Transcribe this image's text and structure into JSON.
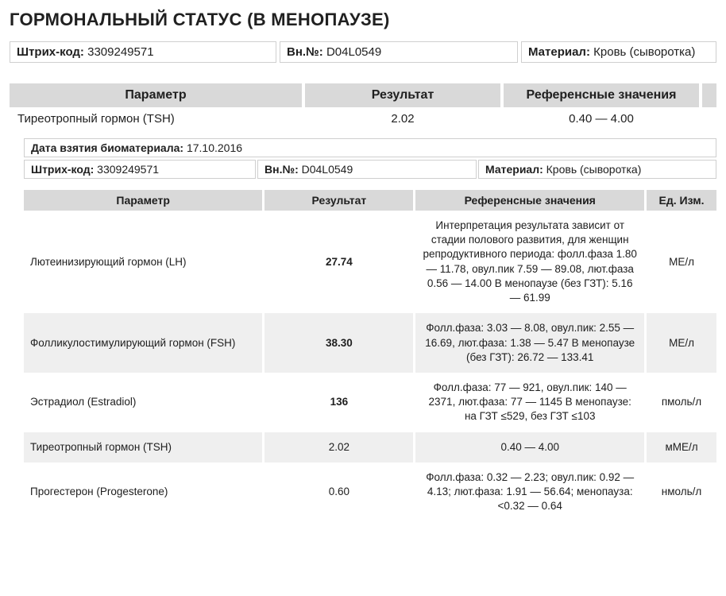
{
  "title": "ГОРМОНАЛЬНЫЙ СТАТУС (В МЕНОПАУЗЕ)",
  "info": {
    "barcode_label": "Штрих-код:",
    "barcode_value": "3309249571",
    "vn_label": "Вн.№:",
    "vn_value": "D04L0549",
    "material_label": "Материал:",
    "material_value": "Кровь (сыворотка)"
  },
  "top_table": {
    "headers": {
      "param": "Параметр",
      "result": "Результат",
      "ref": "Референсные значения"
    },
    "row": {
      "param": "Тиреотропный гормон (TSH)",
      "result": "2.02",
      "ref": "0.40 — 4.00"
    }
  },
  "sub_info": {
    "date_label": "Дата взятия биоматериала:",
    "date_value": "17.10.2016",
    "barcode_label": "Штрих-код:",
    "barcode_value": "3309249571",
    "vn_label": "Вн.№:",
    "vn_value": "D04L0549",
    "material_label": "Материал:",
    "material_value": "Кровь (сыворотка)"
  },
  "det_table": {
    "headers": {
      "param": "Параметр",
      "result": "Результат",
      "ref": "Референсные значения",
      "unit": "Ед. Изм."
    },
    "rows": [
      {
        "param": "Лютеинизирующий гормон (LH)",
        "result": "27.74",
        "bold": true,
        "ref": "Интерпретация результата зависит от стадии полового развития, для женщин репродуктивного периода: фолл.фаза 1.80 — 11.78, овул.пик 7.59 — 89.08, лют.фаза 0.56 — 14.00 В менопаузе (без ГЗТ): 5.16 — 61.99",
        "unit": "МЕ/л",
        "alt": false
      },
      {
        "param": "Фолликулостимулирующий гормон (FSH)",
        "result": "38.30",
        "bold": true,
        "ref": "Фолл.фаза: 3.03 — 8.08, овул.пик: 2.55 — 16.69, лют.фаза: 1.38 — 5.47 В менопаузе (без ГЗТ): 26.72 — 133.41",
        "unit": "МЕ/л",
        "alt": true
      },
      {
        "param": "Эстрадиол (Estradiol)",
        "result": "136",
        "bold": true,
        "ref": "Фолл.фаза: 77 — 921, овул.пик: 140 — 2371, лют.фаза: 77 — 1145 В менопаузе: на ГЗТ ≤529, без ГЗТ ≤103",
        "unit": "пмоль/л",
        "alt": false
      },
      {
        "param": "Тиреотропный гормон (TSH)",
        "result": "2.02",
        "bold": false,
        "ref": "0.40 — 4.00",
        "unit": "мМЕ/л",
        "alt": true
      },
      {
        "param": "Прогестерон (Progesterone)",
        "result": "0.60",
        "bold": false,
        "ref": "Фолл.фаза: 0.32 — 2.23; овул.пик: 0.92 — 4.13; лют.фаза: 1.91 — 56.64; менопауза: <0.32 — 0.64",
        "unit": "нмоль/л",
        "alt": false
      }
    ]
  },
  "colors": {
    "header_bg": "#d9d9d9",
    "alt_row_bg": "#efefef",
    "border": "#cfcfcf",
    "text": "#202020",
    "background": "#ffffff"
  }
}
